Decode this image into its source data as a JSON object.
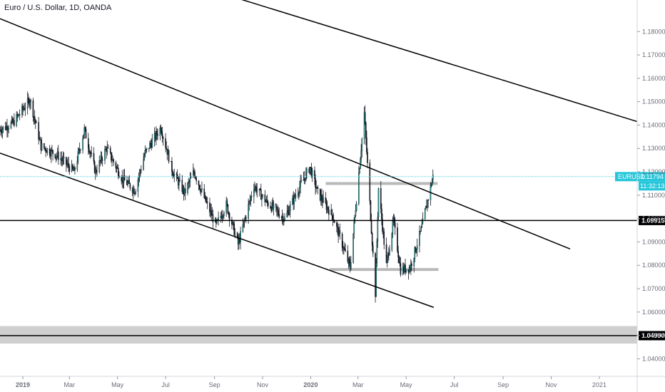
{
  "header": {
    "title": "Euro / U.S. Dollar, 1D, OANDA"
  },
  "colors": {
    "up": "#26a69a",
    "down": "#131722",
    "current_price_line": "#4dd0e1",
    "price_tag": "#26c6da",
    "zone": "#cfcfcf",
    "trendline": "#000000"
  },
  "chart_data": {
    "type": "candlestick",
    "symbol": "EURUSD",
    "title": "Euro / U.S. Dollar, 1D, OANDA",
    "grid": false,
    "x_axis": {
      "range": [
        "2018-12-03",
        "2021-02-18"
      ],
      "ticks": [
        {
          "date": "2019-01-01",
          "label": "2019",
          "bold": true
        },
        {
          "date": "2019-03-01",
          "label": "Mar"
        },
        {
          "date": "2019-05-01",
          "label": "May"
        },
        {
          "date": "2019-07-01",
          "label": "Jul"
        },
        {
          "date": "2019-09-01",
          "label": "Sep"
        },
        {
          "date": "2019-11-01",
          "label": "Nov"
        },
        {
          "date": "2020-01-01",
          "label": "2020",
          "bold": true
        },
        {
          "date": "2020-03-01",
          "label": "Mar"
        },
        {
          "date": "2020-05-01",
          "label": "May"
        },
        {
          "date": "2020-07-01",
          "label": "Jul"
        },
        {
          "date": "2020-09-01",
          "label": "Sep"
        },
        {
          "date": "2020-11-01",
          "label": "Nov"
        },
        {
          "date": "2021-01-01",
          "label": "2021"
        }
      ]
    },
    "y_axis": {
      "range": [
        1.0325,
        1.1935
      ],
      "ticks": [
        "1.04000",
        "1.05000",
        "1.06000",
        "1.07000",
        "1.08000",
        "1.09000",
        "1.10000",
        "1.11000",
        "1.12000",
        "1.13000",
        "1.14000",
        "1.15000",
        "1.16000",
        "1.17000",
        "1.18000"
      ]
    },
    "price_path": [
      {
        "date": "2018-12-03",
        "close": 1.138
      },
      {
        "date": "2018-12-20",
        "close": 1.141
      },
      {
        "date": "2019-01-10",
        "close": 1.151
      },
      {
        "date": "2019-01-24",
        "close": 1.131
      },
      {
        "date": "2019-02-14",
        "close": 1.127
      },
      {
        "date": "2019-03-07",
        "close": 1.12
      },
      {
        "date": "2019-03-20",
        "close": 1.138
      },
      {
        "date": "2019-04-03",
        "close": 1.12
      },
      {
        "date": "2019-04-17",
        "close": 1.13
      },
      {
        "date": "2019-05-07",
        "close": 1.117
      },
      {
        "date": "2019-05-23",
        "close": 1.112
      },
      {
        "date": "2019-06-05",
        "close": 1.128
      },
      {
        "date": "2019-06-25",
        "close": 1.139
      },
      {
        "date": "2019-07-10",
        "close": 1.12
      },
      {
        "date": "2019-07-25",
        "close": 1.111
      },
      {
        "date": "2019-08-06",
        "close": 1.12
      },
      {
        "date": "2019-08-20",
        "close": 1.108
      },
      {
        "date": "2019-09-03",
        "close": 1.097
      },
      {
        "date": "2019-09-16",
        "close": 1.106
      },
      {
        "date": "2019-10-01",
        "close": 1.089
      },
      {
        "date": "2019-10-21",
        "close": 1.114
      },
      {
        "date": "2019-11-06",
        "close": 1.107
      },
      {
        "date": "2019-11-29",
        "close": 1.1
      },
      {
        "date": "2019-12-17",
        "close": 1.113
      },
      {
        "date": "2019-12-31",
        "close": 1.122
      },
      {
        "date": "2020-01-10",
        "close": 1.111
      },
      {
        "date": "2020-01-29",
        "close": 1.101
      },
      {
        "date": "2020-02-20",
        "close": 1.079
      },
      {
        "date": "2020-03-09",
        "close": 1.145
      },
      {
        "date": "2020-03-23",
        "close": 1.068
      },
      {
        "date": "2020-03-27",
        "close": 1.113
      },
      {
        "date": "2020-04-06",
        "close": 1.08
      },
      {
        "date": "2020-04-15",
        "close": 1.099
      },
      {
        "date": "2020-04-24",
        "close": 1.078
      },
      {
        "date": "2020-05-06",
        "close": 1.079
      },
      {
        "date": "2020-05-20",
        "close": 1.095
      },
      {
        "date": "2020-06-04",
        "close": 1.118
      }
    ],
    "series": [
      {
        "name": "EURUSD",
        "last_value": "1.11794",
        "countdown": "11:32:13"
      }
    ],
    "annotations": {
      "trendlines": [
        {
          "from": {
            "date": "2018-12-03",
            "price": 1.1855
          },
          "to": {
            "date": "2020-11-25",
            "price": 1.087
          }
        },
        {
          "from": {
            "date": "2018-12-03",
            "price": 1.128
          },
          "to": {
            "date": "2020-06-05",
            "price": 1.062
          }
        },
        {
          "from": {
            "date": "2019-08-01",
            "price": 1.2005
          },
          "to": {
            "date": "2021-02-18",
            "price": 1.1415
          }
        }
      ],
      "horizontal_lines": [
        {
          "price": 1.09915,
          "label": "1.09915"
        },
        {
          "price": 1.0499,
          "label": "1.04990"
        }
      ],
      "zones": [
        {
          "price_from": 1.0465,
          "price_to": 1.054
        }
      ],
      "range_markers": [
        {
          "from": "2020-01-20",
          "to": "2020-06-10",
          "price": 1.115
        },
        {
          "from": "2020-01-25",
          "to": "2020-06-11",
          "price": 1.0782
        }
      ]
    }
  }
}
